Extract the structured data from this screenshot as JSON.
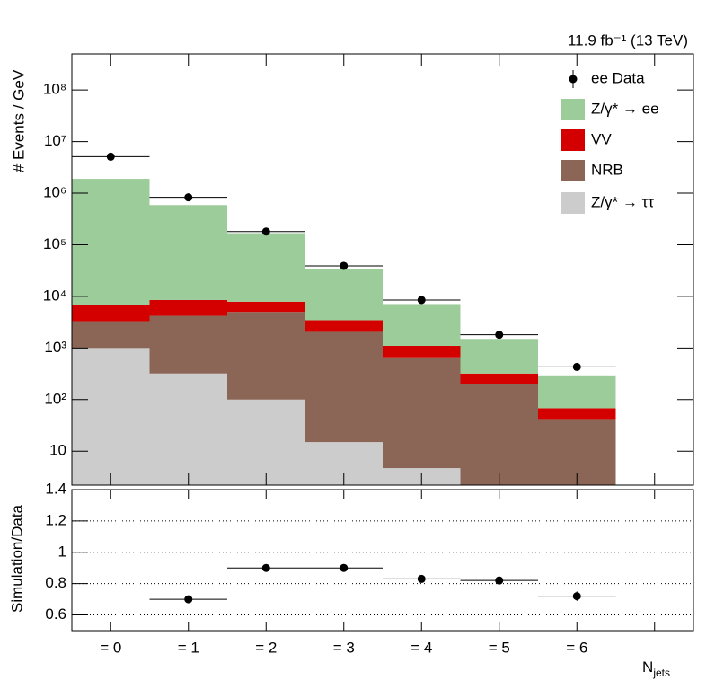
{
  "chart_data": {
    "type": "stacked-histogram-log",
    "annotation": "11.9 fb⁻¹ (13 TeV)",
    "y_label": "# Events / GeV",
    "x_label": {
      "text": "N",
      "subscript": "jets"
    },
    "categories": [
      "= 0",
      "= 1",
      "= 2",
      "= 3",
      "= 4",
      "= 5",
      "= 6",
      null
    ],
    "log_scale": true,
    "ylim": [
      2.2,
      500000000
    ],
    "yticks": [
      10,
      {
        "value": 100,
        "label": "10²"
      },
      {
        "value": 1000,
        "label": "10³"
      },
      {
        "value": 10000,
        "label": "10⁴"
      },
      {
        "value": 100000,
        "label": "10⁵"
      },
      {
        "value": 1000000,
        "label": "10⁶"
      },
      {
        "value": 10000000,
        "label": "10⁷"
      },
      {
        "value": 100000000,
        "label": "10⁸"
      }
    ],
    "data": {
      "name": "ee Data",
      "color": "#000000",
      "values": [
        5100000,
        830000,
        180000,
        39000,
        8500,
        1800,
        430,
        null
      ]
    },
    "series": [
      {
        "name": "Z/γ* → ττ",
        "color": "#cccccc",
        "values": [
          1000,
          320,
          100,
          15,
          4.7,
          0,
          0,
          null
        ]
      },
      {
        "name": "NRB",
        "color": "#8b6656",
        "values": [
          2300,
          3880,
          4900,
          2035,
          655,
          200,
          42,
          null
        ]
      },
      {
        "name": "VV",
        "color": "#d40000",
        "values": [
          3500,
          4300,
          2900,
          1400,
          440,
          120,
          26,
          null
        ]
      },
      {
        "name": "Z/γ* → ee",
        "color": "#9dcc9b",
        "values": [
          1890000,
          580000,
          160000,
          31000,
          6000,
          1180,
          227,
          null
        ]
      }
    ],
    "legend_order": [
      3,
      2,
      1,
      0
    ],
    "ratio": {
      "y_label": "Simulation/Data",
      "ylim": [
        0.5,
        1.4
      ],
      "yticks": [
        0.6,
        0.8,
        1,
        1.2,
        1.4
      ],
      "grid": true,
      "values": [
        null,
        0.7,
        0.9,
        0.9,
        0.83,
        0.82,
        0.72,
        null
      ],
      "errors": [
        null,
        0.005,
        0.005,
        0.005,
        0.005,
        0.005,
        0.03,
        null
      ]
    }
  }
}
